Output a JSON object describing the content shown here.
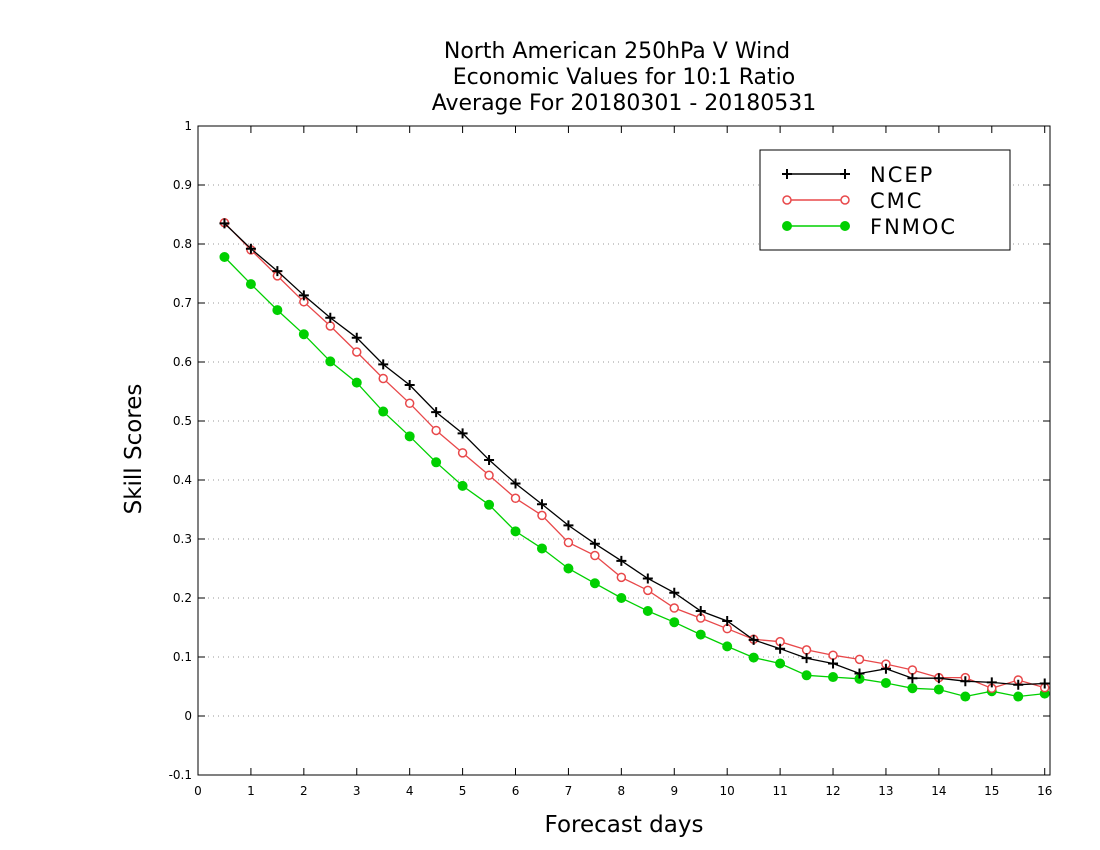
{
  "chart_data": {
    "type": "line",
    "title_lines": [
      "North American 250hPa V Wind",
      "Economic Values for 10:1 Ratio",
      "Average For 20180301 - 20180531"
    ],
    "xlabel": "Forecast days",
    "ylabel": "Skill Scores",
    "xlim": [
      0,
      16.1
    ],
    "ylim": [
      -0.1,
      1
    ],
    "xticks": [
      0,
      1,
      2,
      3,
      4,
      5,
      6,
      7,
      8,
      9,
      10,
      11,
      12,
      13,
      14,
      15,
      16
    ],
    "yticks": [
      -0.1,
      0,
      0.1,
      0.2,
      0.3,
      0.4,
      0.5,
      0.6,
      0.7,
      0.8,
      0.9,
      1
    ],
    "ytick_labels": [
      "-0.1",
      "0",
      "0.1",
      "0.2",
      "0.3",
      "0.4",
      "0.5",
      "0.6",
      "0.7",
      "0.8",
      "0.9",
      "1"
    ],
    "grid": true,
    "legend_position": "top-right",
    "x": [
      0.5,
      1.0,
      1.5,
      2.0,
      2.5,
      3.0,
      3.5,
      4.0,
      4.5,
      5.0,
      5.5,
      6.0,
      6.5,
      7.0,
      7.5,
      8.0,
      8.5,
      9.0,
      9.5,
      10.0,
      10.5,
      11.0,
      11.5,
      12.0,
      12.5,
      13.0,
      13.5,
      14.0,
      14.5,
      15.0,
      15.5,
      16.0
    ],
    "series": [
      {
        "name": "NCEP",
        "color": "#000000",
        "marker": "plus",
        "values": [
          0.835,
          0.792,
          0.754,
          0.713,
          0.675,
          0.641,
          0.596,
          0.561,
          0.515,
          0.479,
          0.434,
          0.394,
          0.359,
          0.323,
          0.292,
          0.263,
          0.233,
          0.209,
          0.178,
          0.161,
          0.129,
          0.114,
          0.098,
          0.089,
          0.072,
          0.08,
          0.064,
          0.064,
          0.059,
          0.057,
          0.053,
          0.055
        ]
      },
      {
        "name": "CMC",
        "color": "#e8484a",
        "marker": "open-circle",
        "values": [
          0.836,
          0.79,
          0.746,
          0.702,
          0.661,
          0.617,
          0.572,
          0.53,
          0.484,
          0.446,
          0.408,
          0.369,
          0.34,
          0.294,
          0.272,
          0.235,
          0.213,
          0.183,
          0.166,
          0.148,
          0.13,
          0.126,
          0.112,
          0.103,
          0.096,
          0.088,
          0.078,
          0.065,
          0.065,
          0.047,
          0.061,
          0.048
        ]
      },
      {
        "name": "FNMOC",
        "color": "#00d000",
        "marker": "filled-circle",
        "values": [
          0.778,
          0.732,
          0.688,
          0.647,
          0.601,
          0.565,
          0.516,
          0.474,
          0.43,
          0.39,
          0.358,
          0.313,
          0.284,
          0.25,
          0.225,
          0.2,
          0.178,
          0.159,
          0.138,
          0.118,
          0.099,
          0.089,
          0.069,
          0.066,
          0.063,
          0.056,
          0.047,
          0.045,
          0.033,
          0.042,
          0.033,
          0.038
        ]
      }
    ]
  }
}
